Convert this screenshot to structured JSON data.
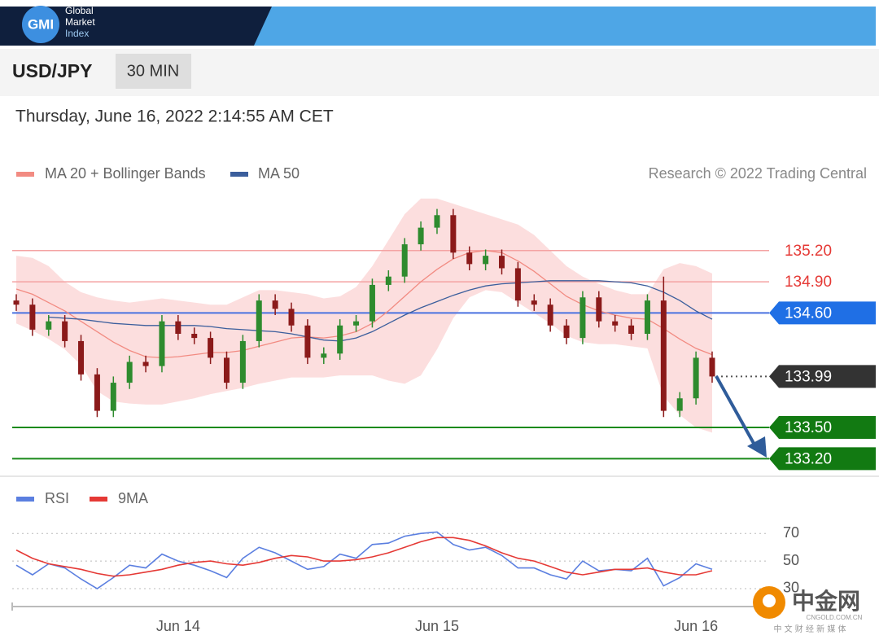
{
  "header": {
    "logo": "GMI",
    "brand": [
      "Global",
      "Market",
      "Index"
    ]
  },
  "symbol": "USD/JPY",
  "timeframe": "30 MIN",
  "timestamp": "Thursday, June 16, 2022 2:14:55 AM CET",
  "credit": "Research © 2022 Trading Central",
  "watermark": {
    "name": "中金网",
    "site": "CNGOLD.COM.CN",
    "tagline": "中 文 财 经 新 媒 体"
  },
  "chart_data": [
    {
      "type": "candlestick",
      "categories": [
        null,
        null,
        null,
        null,
        null,
        null,
        null,
        null,
        null,
        null,
        "Jun 14",
        null,
        null,
        null,
        null,
        null,
        null,
        null,
        null,
        null,
        null,
        null,
        null,
        null,
        null,
        null,
        "Jun 15",
        null,
        null,
        null,
        null,
        null,
        null,
        null,
        null,
        null,
        null,
        null,
        null,
        null,
        null,
        null,
        "Jun 16",
        null
      ],
      "open": [
        134.72,
        134.68,
        134.44,
        134.52,
        134.33,
        134.01,
        133.66,
        133.93,
        134.13,
        134.09,
        134.52,
        134.4,
        134.36,
        134.17,
        133.93,
        134.33,
        134.72,
        134.64,
        134.48,
        134.17,
        134.21,
        134.48,
        134.52,
        134.87,
        134.95,
        135.26,
        135.42,
        135.54,
        135.18,
        135.07,
        135.15,
        135.03,
        134.72,
        134.68,
        134.48,
        134.36,
        134.75,
        134.52,
        134.48,
        134.4,
        134.72,
        133.66,
        133.78,
        134.17
      ],
      "high": [
        134.78,
        134.74,
        134.58,
        134.58,
        134.39,
        134.07,
        133.99,
        134.19,
        134.19,
        134.58,
        134.58,
        134.46,
        134.42,
        134.23,
        134.39,
        134.78,
        134.78,
        134.7,
        134.54,
        134.27,
        134.54,
        134.58,
        134.93,
        135.01,
        135.32,
        135.48,
        135.6,
        135.6,
        135.24,
        135.21,
        135.21,
        135.09,
        134.78,
        134.74,
        134.54,
        134.81,
        134.81,
        134.58,
        134.54,
        134.78,
        134.95,
        133.84,
        134.23,
        134.23
      ],
      "low": [
        134.62,
        134.38,
        134.38,
        134.27,
        133.95,
        133.6,
        133.6,
        133.87,
        134.03,
        134.03,
        134.34,
        134.3,
        134.11,
        133.87,
        133.87,
        134.27,
        134.58,
        134.42,
        134.11,
        134.11,
        134.15,
        134.42,
        134.46,
        134.81,
        134.89,
        135.2,
        135.36,
        135.12,
        135.01,
        135.01,
        134.97,
        134.66,
        134.62,
        134.42,
        134.3,
        134.3,
        134.46,
        134.42,
        134.34,
        134.34,
        133.6,
        133.6,
        133.72,
        133.93
      ],
      "close": [
        134.68,
        134.44,
        134.52,
        134.33,
        134.01,
        133.66,
        133.93,
        134.13,
        134.09,
        134.52,
        134.4,
        134.36,
        134.17,
        133.93,
        134.33,
        134.72,
        134.64,
        134.48,
        134.17,
        134.21,
        134.48,
        134.52,
        134.87,
        134.95,
        135.26,
        135.42,
        135.54,
        135.18,
        135.07,
        135.15,
        135.03,
        134.72,
        134.68,
        134.48,
        134.36,
        134.75,
        134.52,
        134.48,
        134.4,
        134.72,
        133.66,
        133.78,
        134.17,
        133.99
      ],
      "up_color": "#2e8b2e",
      "down_color": "#8b1a1a",
      "series": [
        {
          "name": "MA 20 + Bollinger Bands",
          "color": "#f28b82",
          "values": [
            134.83,
            134.78,
            134.7,
            134.62,
            134.52,
            134.42,
            134.32,
            134.24,
            134.18,
            134.17,
            134.18,
            134.2,
            134.22,
            134.22,
            134.24,
            134.28,
            134.32,
            134.36,
            134.37,
            134.36,
            134.38,
            134.42,
            134.5,
            134.62,
            134.76,
            134.9,
            135.02,
            135.12,
            135.18,
            135.2,
            135.18,
            135.1,
            135.0,
            134.88,
            134.76,
            134.68,
            134.62,
            134.58,
            134.55,
            134.54,
            134.45,
            134.35,
            134.26,
            134.2
          ],
          "upper": [
            135.15,
            135.13,
            135.05,
            134.9,
            134.8,
            134.75,
            134.72,
            134.7,
            134.72,
            134.74,
            134.72,
            134.7,
            134.68,
            134.68,
            134.75,
            134.82,
            134.82,
            134.8,
            134.78,
            134.74,
            134.76,
            134.85,
            135.05,
            135.3,
            135.55,
            135.7,
            135.7,
            135.65,
            135.6,
            135.55,
            135.5,
            135.45,
            135.35,
            135.2,
            135.05,
            134.95,
            134.88,
            134.82,
            134.78,
            134.78,
            135.02,
            135.08,
            135.05,
            134.98
          ],
          "lower": [
            134.5,
            134.43,
            134.35,
            134.25,
            134.1,
            133.85,
            133.75,
            133.73,
            133.72,
            133.72,
            133.75,
            133.78,
            133.82,
            133.85,
            133.88,
            133.92,
            133.95,
            133.98,
            133.98,
            133.98,
            134.0,
            134.0,
            134.0,
            133.95,
            133.92,
            134.0,
            134.25,
            134.55,
            134.75,
            134.82,
            134.8,
            134.7,
            134.6,
            134.5,
            134.38,
            134.32,
            134.3,
            134.3,
            134.28,
            134.26,
            133.8,
            133.62,
            133.5,
            133.45
          ],
          "band_color": "#fbd3d3"
        },
        {
          "name": "MA 50",
          "color": "#3b5e9c",
          "values": [
            null,
            null,
            134.56,
            134.55,
            134.54,
            134.52,
            134.5,
            134.49,
            134.48,
            134.48,
            134.48,
            134.48,
            134.47,
            134.45,
            134.44,
            134.43,
            134.42,
            134.4,
            134.37,
            134.34,
            134.33,
            134.36,
            134.42,
            134.5,
            134.58,
            134.65,
            134.71,
            134.77,
            134.82,
            134.86,
            134.88,
            134.89,
            134.9,
            134.91,
            134.91,
            134.91,
            134.91,
            134.9,
            134.89,
            134.86,
            134.8,
            134.72,
            134.62,
            134.54
          ]
        }
      ],
      "levels": [
        {
          "price": {
            "value": 135.2,
            "label": "135.20"
          },
          "color": "#e53935",
          "line_color": "#f4a3a3",
          "box": false,
          "style": "solid"
        },
        {
          "price": {
            "value": 134.9,
            "label": "134.90"
          },
          "color": "#e53935",
          "line_color": "#f4a3a3",
          "box": false,
          "style": "solid"
        },
        {
          "price": {
            "value": 134.6,
            "label": "134.60"
          },
          "color": "#1f6fe5",
          "line_color": "#4a72e0",
          "box": true,
          "style": "solid"
        },
        {
          "price": 133.99,
          "color": "#333333",
          "line_color": "#555555",
          "box": true,
          "style": "dotted"
        },
        {
          "price": {
            "value": 133.5,
            "label": "133.50"
          },
          "color": "#127a12",
          "line_color": "#1a8a1a",
          "box": true,
          "style": "solid"
        },
        {
          "price": {
            "value": 133.2,
            "label": "133.20"
          },
          "color": "#127a12",
          "line_color": "#1a8a1a",
          "box": true,
          "style": "solid"
        }
      ],
      "ylim": [
        133.07,
        135.73
      ]
    },
    {
      "type": "line",
      "series": [
        {
          "name": "RSI",
          "color": "#5b7fe0",
          "values": [
            47,
            40,
            48,
            45,
            37,
            30,
            38,
            47,
            45,
            55,
            50,
            47,
            43,
            38,
            52,
            60,
            56,
            50,
            44,
            46,
            55,
            52,
            62,
            63,
            68,
            70,
            71,
            62,
            58,
            60,
            54,
            45,
            45,
            40,
            37,
            50,
            43,
            44,
            43,
            52,
            32,
            38,
            48,
            44
          ]
        },
        {
          "name": "9MA",
          "color": "#e53935",
          "values": [
            58,
            52,
            48,
            46,
            44,
            41,
            39,
            40,
            42,
            44,
            47,
            49,
            50,
            48,
            47,
            49,
            52,
            54,
            53,
            50,
            50,
            51,
            53,
            56,
            60,
            64,
            67,
            67,
            65,
            61,
            56,
            52,
            50,
            46,
            42,
            40,
            42,
            44,
            44,
            45,
            42,
            40,
            40,
            43
          ]
        }
      ],
      "ylim": [
        17,
        79
      ],
      "yticks": [
        30,
        50,
        70
      ],
      "grid": true
    }
  ]
}
